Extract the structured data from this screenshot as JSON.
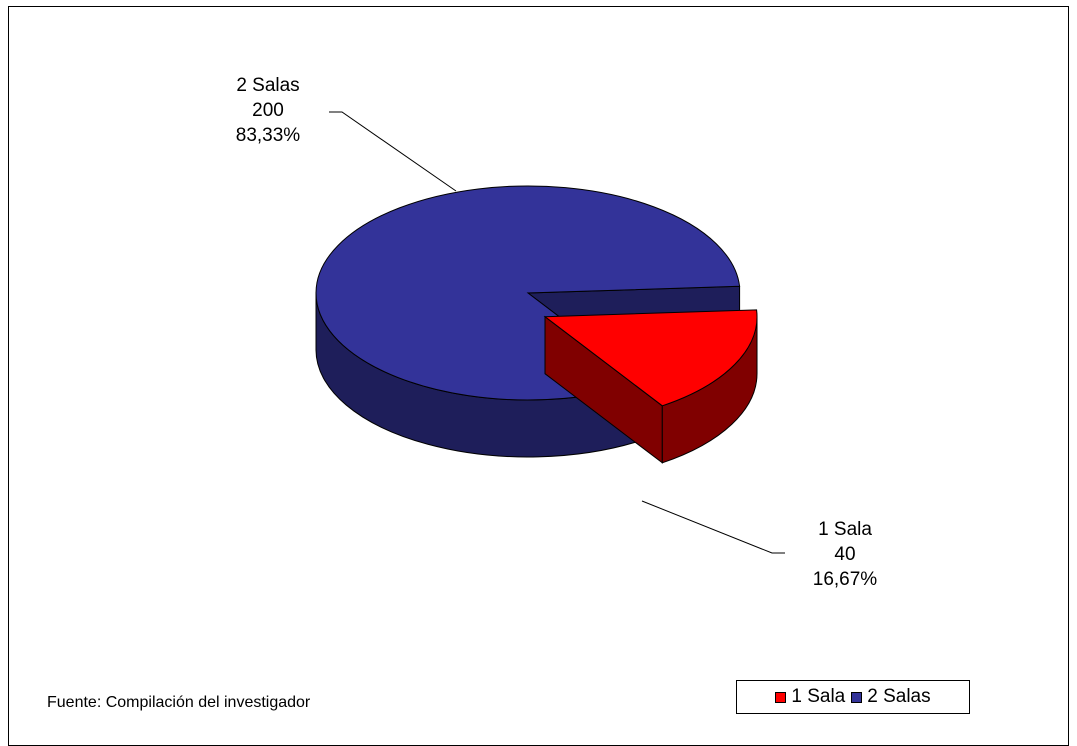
{
  "chart_data": {
    "type": "pie",
    "title": "",
    "categories": [
      "1 Sala",
      "2 Salas"
    ],
    "values": [
      40,
      200
    ],
    "percentages": [
      "16,67%",
      "83,33%"
    ],
    "data_labels": [
      {
        "category": "1 Sala",
        "value": "40",
        "percent": "16,67%"
      },
      {
        "category": "2 Salas",
        "value": "200",
        "percent": "83,33%"
      }
    ],
    "colors": {
      "1 Sala": {
        "top": "#ff0000",
        "side": "#800000"
      },
      "2 Salas": {
        "top": "#333399",
        "side": "#1e1e5a"
      }
    },
    "exploded_slice": "1 Sala",
    "three_d": true,
    "legend": {
      "position": "bottom-right",
      "entries": [
        "1 Sala",
        "2 Salas"
      ]
    }
  },
  "source_note": "Fuente: Compilación del investigador"
}
